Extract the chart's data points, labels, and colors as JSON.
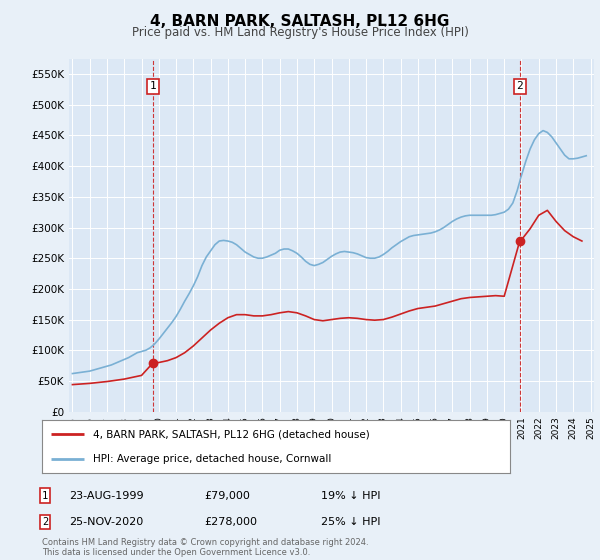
{
  "title": "4, BARN PARK, SALTASH, PL12 6HG",
  "subtitle": "Price paid vs. HM Land Registry's House Price Index (HPI)",
  "background_color": "#e8f0f8",
  "plot_bg_color": "#dce8f5",
  "ylim": [
    0,
    575000
  ],
  "yticks": [
    0,
    50000,
    100000,
    150000,
    200000,
    250000,
    300000,
    350000,
    400000,
    450000,
    500000,
    550000
  ],
  "ytick_labels": [
    "£0",
    "£50K",
    "£100K",
    "£150K",
    "£200K",
    "£250K",
    "£300K",
    "£350K",
    "£400K",
    "£450K",
    "£500K",
    "£550K"
  ],
  "xstart": 1995,
  "xend": 2025,
  "red_line_label": "4, BARN PARK, SALTASH, PL12 6HG (detached house)",
  "blue_line_label": "HPI: Average price, detached house, Cornwall",
  "sale1_date": "23-AUG-1999",
  "sale1_year": 1999.65,
  "sale1_price": 79000,
  "sale2_date": "25-NOV-2020",
  "sale2_year": 2020.9,
  "sale2_price": 278000,
  "footnote": "Contains HM Land Registry data © Crown copyright and database right 2024.\nThis data is licensed under the Open Government Licence v3.0.",
  "hpi_years": [
    1995.0,
    1995.25,
    1995.5,
    1995.75,
    1996.0,
    1996.25,
    1996.5,
    1996.75,
    1997.0,
    1997.25,
    1997.5,
    1997.75,
    1998.0,
    1998.25,
    1998.5,
    1998.75,
    1999.0,
    1999.25,
    1999.5,
    1999.75,
    2000.0,
    2000.25,
    2000.5,
    2000.75,
    2001.0,
    2001.25,
    2001.5,
    2001.75,
    2002.0,
    2002.25,
    2002.5,
    2002.75,
    2003.0,
    2003.25,
    2003.5,
    2003.75,
    2004.0,
    2004.25,
    2004.5,
    2004.75,
    2005.0,
    2005.25,
    2005.5,
    2005.75,
    2006.0,
    2006.25,
    2006.5,
    2006.75,
    2007.0,
    2007.25,
    2007.5,
    2007.75,
    2008.0,
    2008.25,
    2008.5,
    2008.75,
    2009.0,
    2009.25,
    2009.5,
    2009.75,
    2010.0,
    2010.25,
    2010.5,
    2010.75,
    2011.0,
    2011.25,
    2011.5,
    2011.75,
    2012.0,
    2012.25,
    2012.5,
    2012.75,
    2013.0,
    2013.25,
    2013.5,
    2013.75,
    2014.0,
    2014.25,
    2014.5,
    2014.75,
    2015.0,
    2015.25,
    2015.5,
    2015.75,
    2016.0,
    2016.25,
    2016.5,
    2016.75,
    2017.0,
    2017.25,
    2017.5,
    2017.75,
    2018.0,
    2018.25,
    2018.5,
    2018.75,
    2019.0,
    2019.25,
    2019.5,
    2019.75,
    2020.0,
    2020.25,
    2020.5,
    2020.75,
    2021.0,
    2021.25,
    2021.5,
    2021.75,
    2022.0,
    2022.25,
    2022.5,
    2022.75,
    2023.0,
    2023.25,
    2023.5,
    2023.75,
    2024.0,
    2024.25,
    2024.5,
    2024.75
  ],
  "hpi_values": [
    62000,
    63000,
    64000,
    65000,
    66000,
    68000,
    70000,
    72000,
    74000,
    76000,
    79000,
    82000,
    85000,
    88000,
    92000,
    96000,
    98000,
    100000,
    104000,
    110000,
    118000,
    127000,
    136000,
    145000,
    155000,
    167000,
    180000,
    192000,
    205000,
    220000,
    238000,
    252000,
    262000,
    272000,
    278000,
    279000,
    278000,
    276000,
    272000,
    266000,
    260000,
    256000,
    252000,
    250000,
    250000,
    252000,
    255000,
    258000,
    263000,
    265000,
    265000,
    262000,
    258000,
    252000,
    245000,
    240000,
    238000,
    240000,
    243000,
    248000,
    253000,
    257000,
    260000,
    261000,
    260000,
    259000,
    257000,
    254000,
    251000,
    250000,
    250000,
    252000,
    256000,
    261000,
    267000,
    272000,
    277000,
    281000,
    285000,
    287000,
    288000,
    289000,
    290000,
    291000,
    293000,
    296000,
    300000,
    305000,
    310000,
    314000,
    317000,
    319000,
    320000,
    320000,
    320000,
    320000,
    320000,
    320000,
    321000,
    323000,
    325000,
    330000,
    340000,
    360000,
    385000,
    408000,
    428000,
    443000,
    453000,
    458000,
    455000,
    448000,
    438000,
    428000,
    418000,
    412000,
    412000,
    413000,
    415000,
    417000
  ],
  "red_years": [
    1995.0,
    1995.5,
    1996.0,
    1996.5,
    1997.0,
    1997.5,
    1998.0,
    1998.5,
    1999.0,
    1999.65,
    2000.0,
    2000.5,
    2001.0,
    2001.5,
    2002.0,
    2002.5,
    2003.0,
    2003.5,
    2004.0,
    2004.5,
    2005.0,
    2005.5,
    2006.0,
    2006.5,
    2007.0,
    2007.5,
    2008.0,
    2008.5,
    2009.0,
    2009.5,
    2010.0,
    2010.5,
    2011.0,
    2011.5,
    2012.0,
    2012.5,
    2013.0,
    2013.5,
    2014.0,
    2014.5,
    2015.0,
    2015.5,
    2016.0,
    2016.5,
    2017.0,
    2017.5,
    2018.0,
    2018.5,
    2019.0,
    2019.5,
    2020.0,
    2020.9,
    2021.0,
    2021.5,
    2022.0,
    2022.5,
    2023.0,
    2023.5,
    2024.0,
    2024.5
  ],
  "red_values": [
    44000,
    45000,
    46000,
    47500,
    49000,
    51000,
    53000,
    56000,
    59000,
    79000,
    80000,
    83000,
    88000,
    96000,
    107000,
    120000,
    133000,
    144000,
    153000,
    158000,
    158000,
    156000,
    156000,
    158000,
    161000,
    163000,
    161000,
    156000,
    150000,
    148000,
    150000,
    152000,
    153000,
    152000,
    150000,
    149000,
    150000,
    154000,
    159000,
    164000,
    168000,
    170000,
    172000,
    176000,
    180000,
    184000,
    186000,
    187000,
    188000,
    189000,
    188000,
    278000,
    280000,
    298000,
    320000,
    328000,
    310000,
    295000,
    285000,
    278000
  ]
}
